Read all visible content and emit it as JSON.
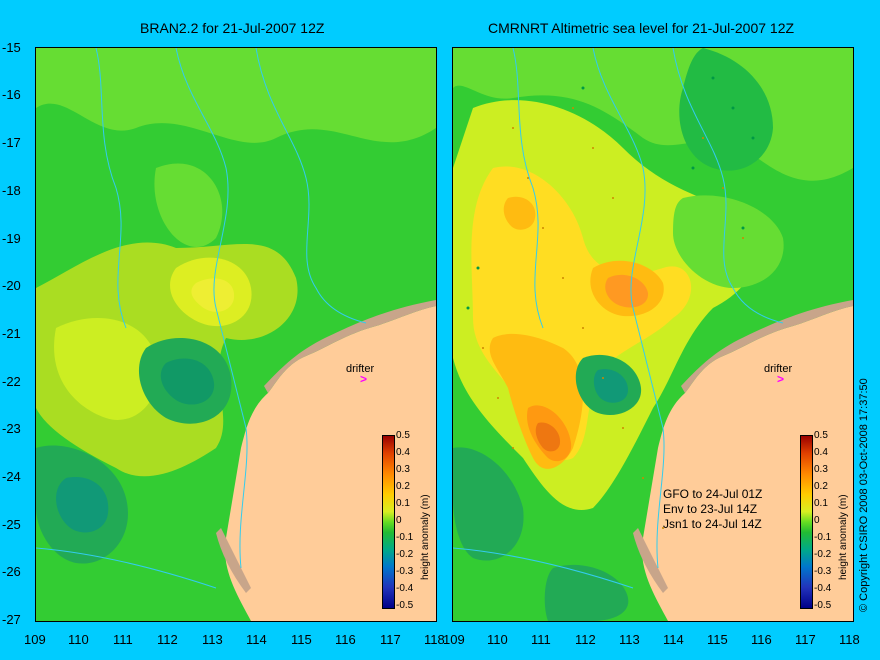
{
  "left_panel": {
    "title": "BRAN2.2 for 21-Jul-2007 12Z"
  },
  "right_panel": {
    "title": "CMRNRT Altimetric sea level  for 21-Jul-2007 12Z",
    "satellites": [
      "GFO to 24-Jul 01Z",
      "Env to 23-Jul 14Z",
      "Jsn1 to 24-Jul 14Z"
    ]
  },
  "y_ticks": [
    "-15",
    "-16",
    "-17",
    "-18",
    "-19",
    "-20",
    "-21",
    "-22",
    "-23",
    "-24",
    "-25",
    "-26",
    "-27"
  ],
  "x_ticks": [
    "109",
    "110",
    "111",
    "112",
    "113",
    "114",
    "115",
    "116",
    "117",
    "118"
  ],
  "drifter_label": "drifter",
  "colorbar": {
    "title": "height anomaly (m)",
    "labels": [
      "0.5",
      "0.4",
      "0.3",
      "0.2",
      "0.1",
      "0",
      "-0.1",
      "-0.2",
      "-0.3",
      "-0.4",
      "-0.5"
    ]
  },
  "copyright": "© Copyright CSIRO 2008   03-Oct-2008 17:37:50",
  "colors": {
    "background": "#00ccff",
    "land": "#ffcc99",
    "coast_shelf": "#c8a58a",
    "drifter": "#ff00ff",
    "contour_lines": "#33ccee"
  },
  "map": {
    "lon_range": [
      109,
      118
    ],
    "lat_range": [
      -27,
      -15
    ],
    "variable": "sea level height anomaly"
  }
}
